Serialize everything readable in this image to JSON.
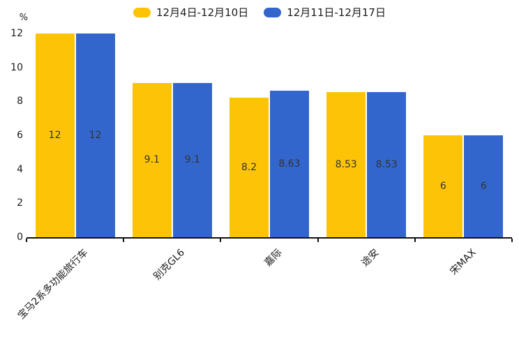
{
  "chart_data": {
    "type": "bar",
    "title": "",
    "unit": "%",
    "categories": [
      "宝马2系多功能旅行车",
      "别克GL6",
      "嘉际",
      "途安",
      "宋MAX"
    ],
    "series": [
      {
        "name": "12月4日-12月10日",
        "color": "#FDC407",
        "values": [
          12,
          9.1,
          8.2,
          8.53,
          6
        ]
      },
      {
        "name": "12月11日-12月17日",
        "color": "#3366CC",
        "values": [
          12,
          9.1,
          8.63,
          8.53,
          6
        ]
      }
    ],
    "ylim": [
      0,
      12
    ],
    "yticks": [
      0,
      2,
      4,
      6,
      8,
      10,
      12
    ],
    "legend_position": "top",
    "grid": false,
    "axis_color": "#111111",
    "value_label_color": "#333333",
    "category_label_rotation_deg": -45
  }
}
